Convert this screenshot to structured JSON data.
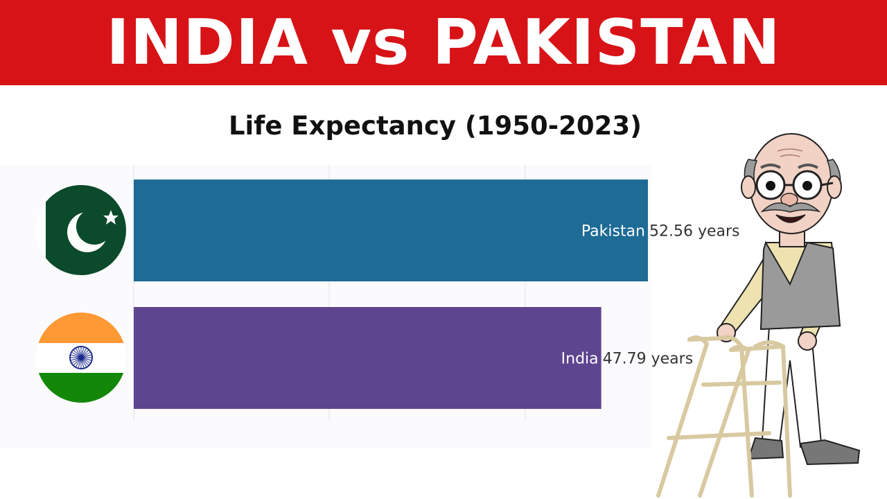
{
  "header": {
    "title": "INDIA vs PAKISTAN"
  },
  "chart_data": {
    "type": "bar",
    "orientation": "horizontal",
    "title": "Life Expectancy (1950-2023)",
    "categories": [
      "Pakistan",
      "India"
    ],
    "values": [
      52.56,
      47.79
    ],
    "value_labels": [
      "52.56 years",
      "47.79 years"
    ],
    "colors": [
      "#1e6b96",
      "#5e4590"
    ],
    "xlim": [
      0,
      52.56
    ],
    "grid": true,
    "legend": "none"
  },
  "icons": [
    "pakistan-flag-icon",
    "india-flag-icon",
    "old-man-with-walker-illustration"
  ]
}
